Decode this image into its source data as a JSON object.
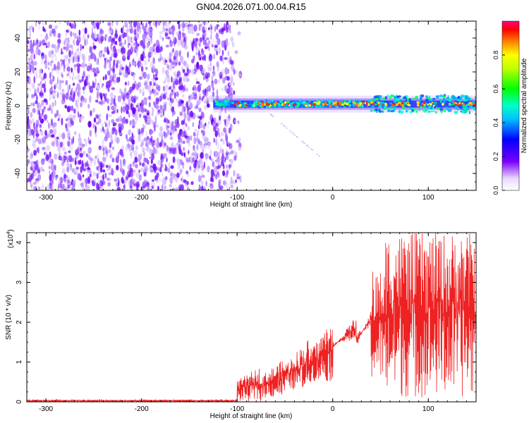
{
  "title": "GN04.2026.071.00.04.R15",
  "chart_data": [
    {
      "type": "heatmap",
      "name": "spectrogram",
      "xlabel": "Height of straight line (km)",
      "ylabel": "Frequency (Hz)",
      "xlim": [
        -320,
        150
      ],
      "ylim": [
        -50,
        50
      ],
      "xticks": [
        -300,
        -200,
        -100,
        0,
        100
      ],
      "yticks": [
        -40,
        -20,
        0,
        20,
        40
      ],
      "noise_region_x": [
        -320,
        -105
      ],
      "signal_region_x": [
        -125,
        150
      ],
      "signal_center_hz": 1,
      "colorbar": {
        "label": "Normalized spectral amplitude",
        "range": [
          0,
          1
        ],
        "ticks": [
          0.0,
          0.2,
          0.4,
          0.6,
          0.8
        ]
      }
    },
    {
      "type": "line",
      "name": "snr",
      "xlabel": "Height of straight line (km)",
      "ylabel": "SNR (10 * v/v)",
      "scale_label": "(x10",
      "scale_exp": "4",
      "scale_close": ")",
      "color": "#ee2222",
      "xlim": [
        -320,
        150
      ],
      "ylim": [
        0,
        4.25
      ],
      "xticks": [
        -300,
        -200,
        -100,
        0,
        100
      ],
      "yticks": [
        0,
        1,
        2,
        3,
        4
      ],
      "segments": [
        {
          "x": [
            -320,
            -100
          ],
          "lo": 0.0,
          "hi": 0.05
        },
        {
          "x": [
            -100,
            -75
          ],
          "lo": 0.0,
          "hi": 0.9
        },
        {
          "x": [
            -75,
            -50
          ],
          "lo": 0.1,
          "hi": 1.1
        },
        {
          "x": [
            -50,
            -25
          ],
          "lo": 0.3,
          "hi": 1.6
        },
        {
          "x": [
            -25,
            0
          ],
          "lo": 0.5,
          "hi": 2.1
        },
        {
          "x": [
            0,
            25
          ],
          "lo": 1.5,
          "hi": 2.2
        },
        {
          "x": [
            25,
            40
          ],
          "lo": 1.8,
          "hi": 2.3
        },
        {
          "x": [
            40,
            55
          ],
          "lo": 0.5,
          "hi": 3.3
        },
        {
          "x": [
            55,
            150
          ],
          "lo": 0.1,
          "hi": 4.25
        }
      ]
    }
  ]
}
